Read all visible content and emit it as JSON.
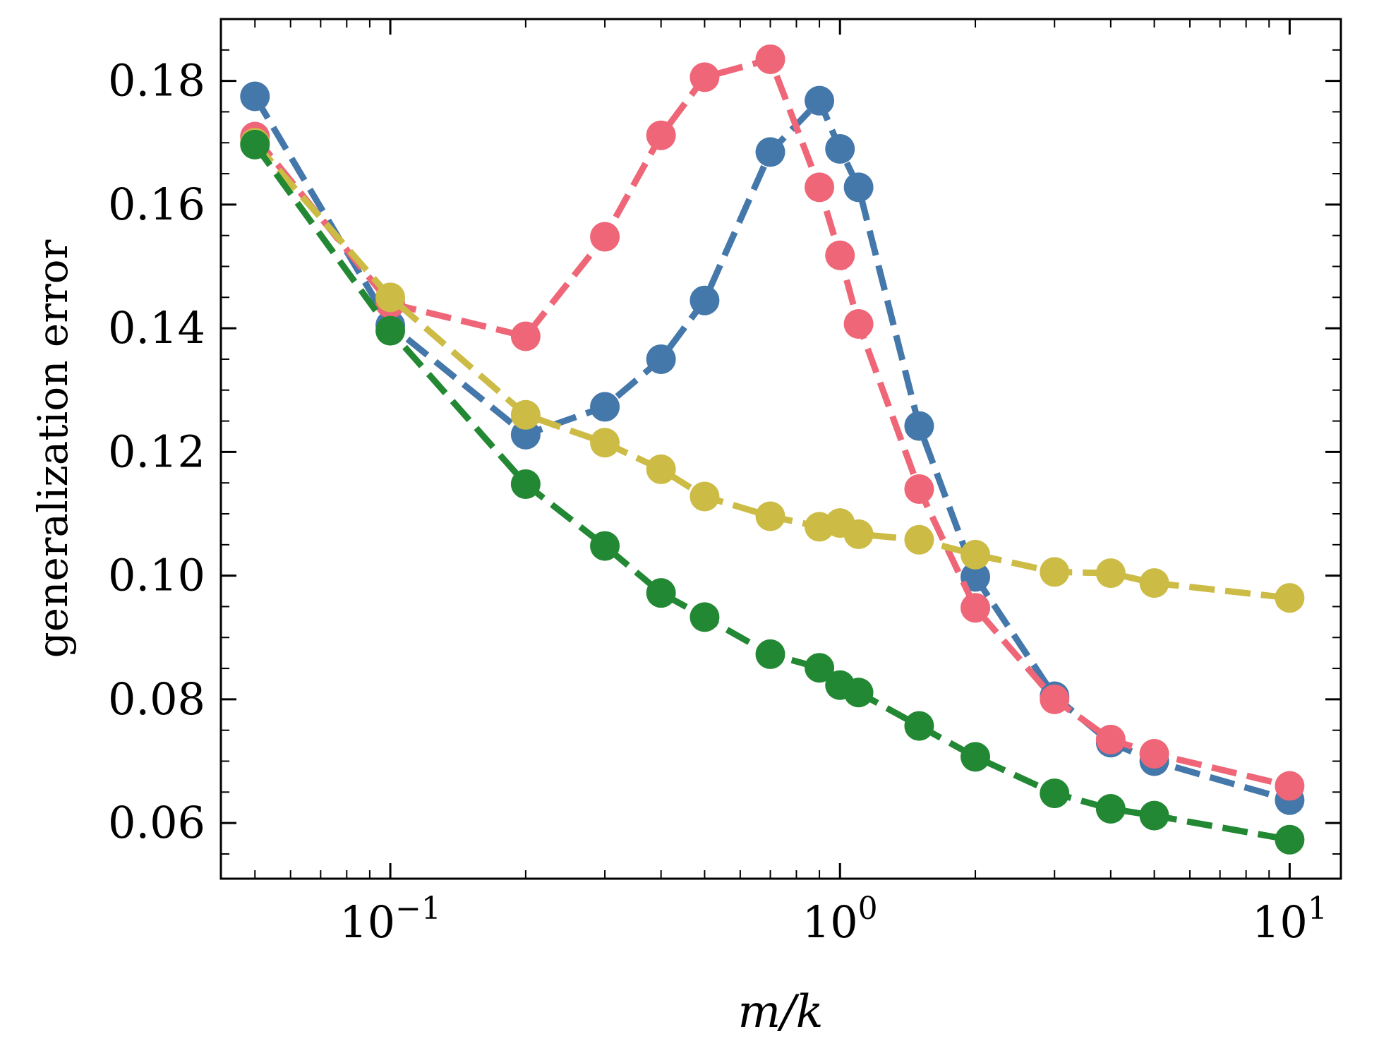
{
  "chart_data": {
    "type": "line",
    "title": "",
    "xlabel": "m/k",
    "ylabel": "generalization error",
    "xscale": "log",
    "xlim": [
      0.042,
      13
    ],
    "ylim": [
      0.051,
      0.19
    ],
    "xticks": [
      {
        "value": 0.1,
        "base": "10",
        "exp": "−1"
      },
      {
        "value": 1,
        "base": "10",
        "exp": "0"
      },
      {
        "value": 10,
        "base": "10",
        "exp": "1"
      }
    ],
    "yticks": [
      {
        "value": 0.06,
        "label": "0.06"
      },
      {
        "value": 0.08,
        "label": "0.08"
      },
      {
        "value": 0.1,
        "label": "0.10"
      },
      {
        "value": 0.12,
        "label": "0.12"
      },
      {
        "value": 0.14,
        "label": "0.14"
      },
      {
        "value": 0.16,
        "label": "0.16"
      },
      {
        "value": 0.18,
        "label": "0.18"
      }
    ],
    "legend": "none",
    "grid": false,
    "series": [
      {
        "name": "blue",
        "color": "#4477AA",
        "x": [
          0.05,
          0.1,
          0.2,
          0.3,
          0.4,
          0.5,
          0.7,
          0.9,
          1.0,
          1.1,
          1.5,
          2.0,
          3.0,
          4.0,
          5.0,
          10.0
        ],
        "y": [
          0.1775,
          0.1405,
          0.1228,
          0.1273,
          0.135,
          0.1445,
          0.1685,
          0.1768,
          0.169,
          0.1628,
          0.1242,
          0.0998,
          0.0805,
          0.073,
          0.07,
          0.0637
        ]
      },
      {
        "name": "red",
        "color": "#EE6677",
        "x": [
          0.05,
          0.1,
          0.2,
          0.3,
          0.4,
          0.5,
          0.7,
          0.9,
          1.0,
          1.1,
          1.5,
          2.0,
          3.0,
          4.0,
          5.0,
          10.0
        ],
        "y": [
          0.171,
          0.144,
          0.1387,
          0.1548,
          0.1712,
          0.1806,
          0.1835,
          0.1628,
          0.1518,
          0.1407,
          0.114,
          0.0948,
          0.08,
          0.0735,
          0.0712,
          0.066
        ]
      },
      {
        "name": "yellow",
        "color": "#CCBB44",
        "x": [
          0.05,
          0.1,
          0.2,
          0.3,
          0.4,
          0.5,
          0.7,
          0.9,
          1.0,
          1.1,
          1.5,
          2.0,
          3.0,
          4.0,
          5.0,
          10.0
        ],
        "y": [
          0.17,
          0.145,
          0.126,
          0.1215,
          0.1172,
          0.1128,
          0.1096,
          0.1079,
          0.1085,
          0.1067,
          0.1058,
          0.1034,
          0.1006,
          0.1004,
          0.0988,
          0.0964
        ]
      },
      {
        "name": "green",
        "color": "#228833",
        "x": [
          0.05,
          0.1,
          0.2,
          0.3,
          0.4,
          0.5,
          0.7,
          0.9,
          1.0,
          1.1,
          1.5,
          2.0,
          3.0,
          4.0,
          5.0,
          10.0
        ],
        "y": [
          0.1697,
          0.1396,
          0.1148,
          0.1048,
          0.0972,
          0.0933,
          0.0873,
          0.0851,
          0.0823,
          0.0811,
          0.0757,
          0.0707,
          0.0648,
          0.0623,
          0.0612,
          0.0573
        ]
      }
    ]
  }
}
